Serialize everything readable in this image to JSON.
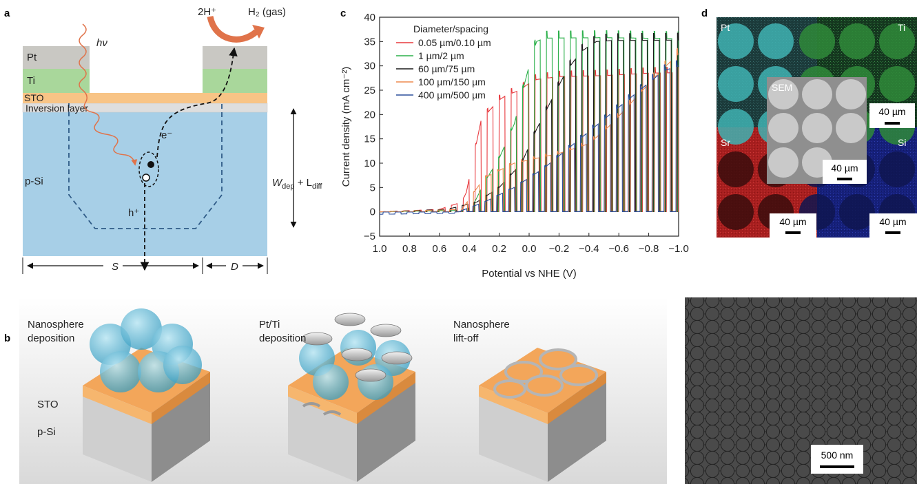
{
  "panel_labels": {
    "a": "a",
    "b": "b",
    "c": "c",
    "d": "d"
  },
  "panel_a": {
    "layers": [
      "Pt",
      "Ti",
      "STO",
      "Inversion layer",
      "p-Si"
    ],
    "photon": "hν",
    "reaction_reactant": "2H⁺",
    "reaction_product": "H₂ (gas)",
    "electron": "e⁻",
    "hole": "h⁺",
    "dim_s": "S",
    "dim_d": "D",
    "depletion_label": "W",
    "depletion_sub1": "dep",
    "depletion_plus": " + L",
    "depletion_sub2": "diff"
  },
  "panel_b": {
    "steps": [
      {
        "line1": "Nanosphere",
        "line2": "deposition"
      },
      {
        "line1": "Pt/Ti",
        "line2": "deposition"
      },
      {
        "line1": "Nanosphere",
        "line2": "lift-off"
      }
    ],
    "layer_labels": [
      "STO",
      "p-Si"
    ],
    "sem_scale": "500 nm"
  },
  "panel_c": {
    "legend_title": "Diameter/spacing",
    "xlabel": "Potential vs NHE (V)",
    "ylabel": "Current density (mA cm⁻²)"
  },
  "panel_d": {
    "quadrants": [
      "Pt",
      "Ti",
      "Sr",
      "Si"
    ],
    "inset_label": "SEM",
    "scale_label": "40 µm"
  },
  "chart_data": {
    "type": "line",
    "xlabel": "Potential vs NHE (V)",
    "ylabel": "Current density (mA cm⁻²)",
    "xlim": [
      1.0,
      -1.0
    ],
    "ylim": [
      -5,
      40
    ],
    "x_ticks": [
      1.0,
      0.8,
      0.6,
      0.4,
      0.2,
      0.0,
      -0.2,
      -0.4,
      -0.6,
      -0.8,
      -1.0
    ],
    "x_tick_labels": [
      "1.0",
      "0.8",
      "0.6",
      "0.4",
      "0.2",
      "0.0",
      "−0.2",
      "−0.4",
      "−0.6",
      "−0.8",
      "−1.0"
    ],
    "y_ticks": [
      -5,
      0,
      5,
      10,
      15,
      20,
      25,
      30,
      35,
      40
    ],
    "y_tick_labels": [
      "−5",
      "0",
      "5",
      "10",
      "15",
      "20",
      "25",
      "30",
      "35",
      "40"
    ],
    "legend_title": "Diameter/spacing",
    "legend_position": "top-left",
    "chop_period_V": 0.08,
    "series": [
      {
        "name": "0.05 µm/0.10 µm",
        "color": "#e8383d",
        "envelope": [
          [
            1.0,
            0
          ],
          [
            0.6,
            0.5
          ],
          [
            0.45,
            2
          ],
          [
            0.42,
            4
          ],
          [
            0.38,
            10
          ],
          [
            0.32,
            19
          ],
          [
            0.26,
            21
          ],
          [
            0.2,
            23
          ],
          [
            0.15,
            24
          ],
          [
            0.06,
            25
          ],
          [
            0.02,
            26
          ],
          [
            -0.05,
            27.2
          ],
          [
            -0.2,
            27.8
          ],
          [
            -0.5,
            28
          ],
          [
            -0.8,
            28.5
          ],
          [
            -1.0,
            28.6
          ]
        ]
      },
      {
        "name": "1 µm/2 µm",
        "color": "#2bb04a",
        "envelope": [
          [
            1.0,
            0
          ],
          [
            0.45,
            0.3
          ],
          [
            0.38,
            1
          ],
          [
            0.3,
            6
          ],
          [
            0.2,
            11
          ],
          [
            0.1,
            18
          ],
          [
            0.05,
            24
          ],
          [
            0.0,
            30
          ],
          [
            -0.05,
            35
          ],
          [
            -0.1,
            35.7
          ],
          [
            -0.5,
            35.8
          ],
          [
            -1.0,
            35.6
          ]
        ]
      },
      {
        "name": "60 µm/75 µm",
        "color": "#1a1a1a",
        "envelope": [
          [
            1.0,
            0
          ],
          [
            0.55,
            0.5
          ],
          [
            0.35,
            2
          ],
          [
            0.2,
            5
          ],
          [
            0.05,
            10
          ],
          [
            -0.05,
            17
          ],
          [
            -0.15,
            23
          ],
          [
            -0.25,
            29
          ],
          [
            -0.35,
            33
          ],
          [
            -0.45,
            35
          ],
          [
            -0.55,
            35.2
          ],
          [
            -1.0,
            35.3
          ]
        ]
      },
      {
        "name": "100 µm/150 µm",
        "color": "#ee8a4e",
        "envelope": [
          [
            1.0,
            0
          ],
          [
            0.45,
            0.5
          ],
          [
            0.3,
            7
          ],
          [
            0.1,
            10
          ],
          [
            -0.2,
            12
          ],
          [
            -0.4,
            14
          ],
          [
            -0.55,
            18
          ],
          [
            -0.7,
            23
          ],
          [
            -0.85,
            28
          ],
          [
            -1.0,
            32.5
          ]
        ]
      },
      {
        "name": "400 µm/500 µm",
        "color": "#2c4f9c",
        "envelope": [
          [
            1.0,
            -0.5
          ],
          [
            0.5,
            -0.3
          ],
          [
            0.3,
            2
          ],
          [
            0.1,
            5
          ],
          [
            -0.1,
            9
          ],
          [
            -0.3,
            14
          ],
          [
            -0.5,
            19
          ],
          [
            -0.7,
            24
          ],
          [
            -0.9,
            29
          ],
          [
            -1.0,
            30
          ]
        ]
      }
    ]
  }
}
